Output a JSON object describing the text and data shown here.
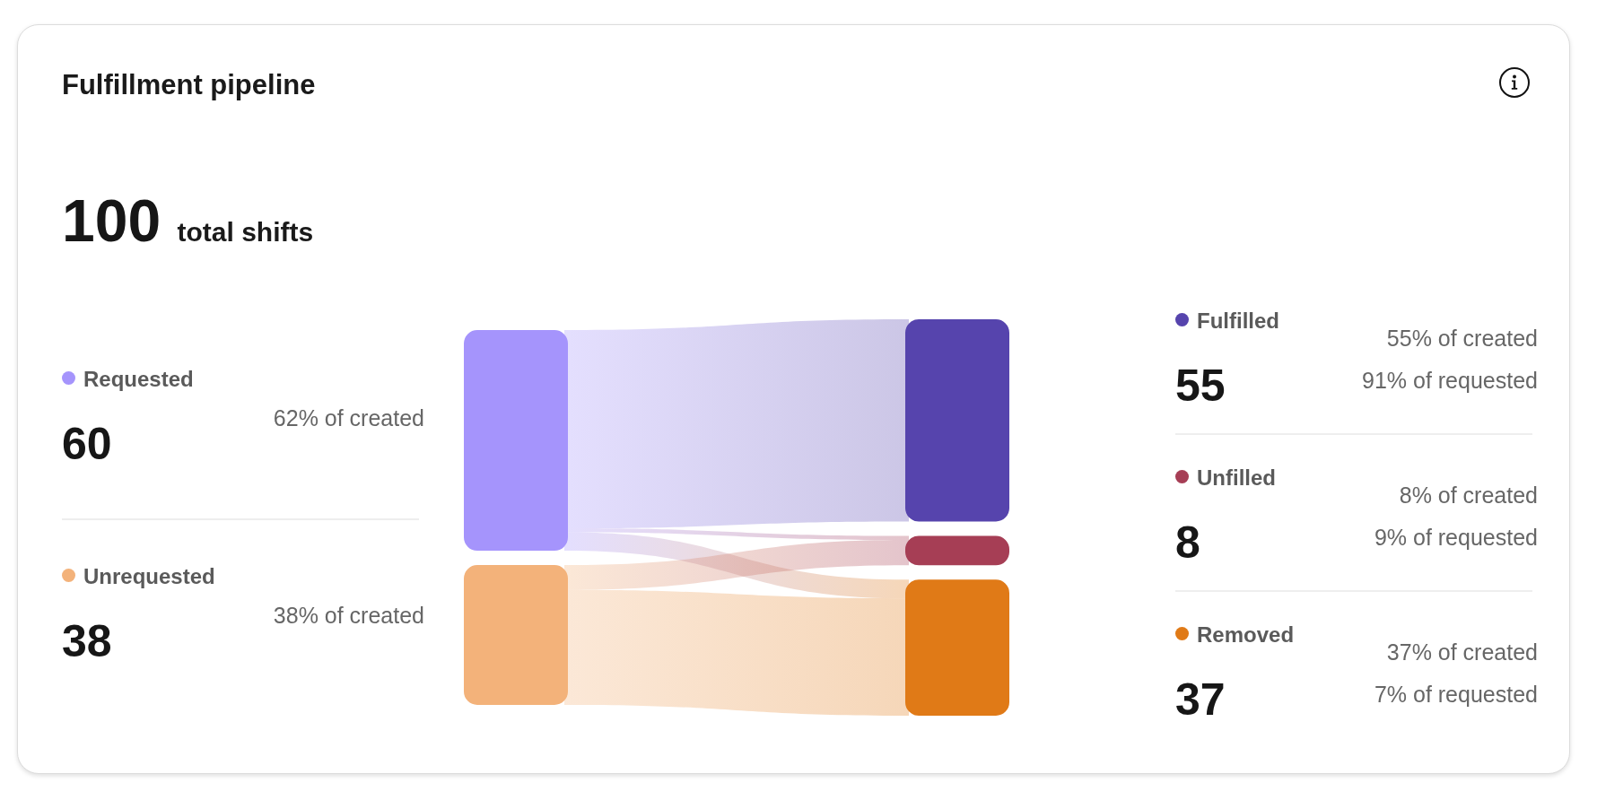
{
  "chart_data": {
    "type": "other",
    "title": "Fulfillment pipeline",
    "subtitle": "100 total shifts",
    "categories": [
      "Requested",
      "Unrequested",
      "Fulfilled",
      "Unfilled",
      "Removed"
    ],
    "values": [
      60,
      38,
      55,
      8,
      37
    ],
    "colors": [
      "#a594fc",
      "#f3b27a",
      "#5644ad",
      "#a63e55",
      "#e07a17"
    ],
    "data_labels": true,
    "annotations": [
      {
        "text": "62% of created",
        "x": "Requested"
      },
      {
        "text": "38% of created",
        "x": "Unrequested"
      },
      {
        "text": "55% of created",
        "x": "Fulfilled"
      },
      {
        "text": "91% of requested",
        "x": "Fulfilled"
      },
      {
        "text": "8% of created",
        "x": "Unfilled"
      },
      {
        "text": "9% of requested",
        "x": "Unfilled"
      },
      {
        "text": "37% of created",
        "x": "Removed"
      },
      {
        "text": "7% of requested",
        "x": "Removed"
      }
    ]
  }
}
